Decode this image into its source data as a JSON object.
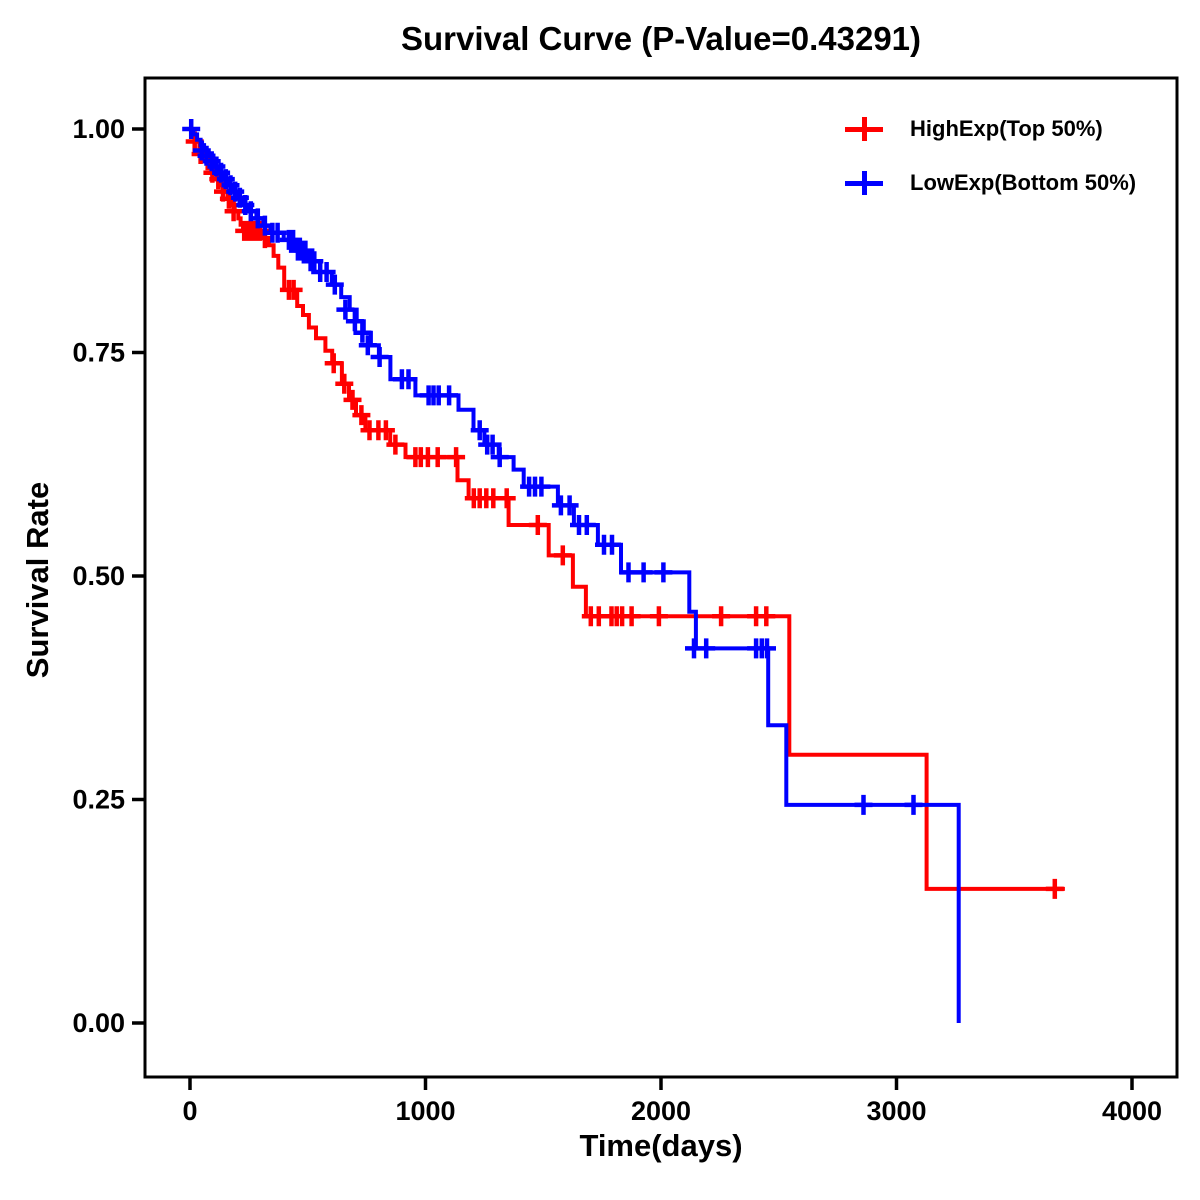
{
  "chart_data": {
    "type": "line",
    "subtype": "kaplan-meier-step-survival",
    "title": "Survival Curve (P-Value=0.43291)",
    "xlabel": "Time(days)",
    "ylabel": "Survival Rate",
    "p_value": "0.43291",
    "grid": false,
    "legend_position": "top-right-inside",
    "xlim": [
      -190,
      4190
    ],
    "ylim": [
      -0.06,
      1.06
    ],
    "x_ticks": [
      0,
      1000,
      2000,
      3000,
      4000
    ],
    "x_tick_labels": [
      "0",
      "1000",
      "2000",
      "3000",
      "4000"
    ],
    "y_ticks": [
      0.0,
      0.25,
      0.5,
      0.75,
      1.0
    ],
    "y_tick_labels": [
      "0.00",
      "0.25",
      "0.50",
      "0.75",
      "1.00"
    ],
    "axis_color": "#000000",
    "background_color": "#ffffff",
    "series": [
      {
        "id": "highexp",
        "name": "HighExp(Top 50%)",
        "color": "#FF0000",
        "end_day": 3715,
        "steps": [
          [
            0,
            1.0
          ],
          [
            12,
            0.993
          ],
          [
            25,
            0.986
          ],
          [
            40,
            0.979
          ],
          [
            55,
            0.972
          ],
          [
            70,
            0.965
          ],
          [
            85,
            0.958
          ],
          [
            100,
            0.951
          ],
          [
            115,
            0.944
          ],
          [
            130,
            0.937
          ],
          [
            145,
            0.93
          ],
          [
            160,
            0.922
          ],
          [
            175,
            0.915
          ],
          [
            190,
            0.908
          ],
          [
            205,
            0.9
          ],
          [
            215,
            0.893
          ],
          [
            225,
            0.886
          ],
          [
            310,
            0.878
          ],
          [
            335,
            0.87
          ],
          [
            355,
            0.858
          ],
          [
            375,
            0.845
          ],
          [
            400,
            0.82
          ],
          [
            455,
            0.802
          ],
          [
            480,
            0.792
          ],
          [
            505,
            0.778
          ],
          [
            535,
            0.766
          ],
          [
            575,
            0.752
          ],
          [
            604,
            0.738
          ],
          [
            645,
            0.715
          ],
          [
            675,
            0.697
          ],
          [
            705,
            0.68
          ],
          [
            745,
            0.663
          ],
          [
            850,
            0.647
          ],
          [
            915,
            0.633
          ],
          [
            1136,
            0.607
          ],
          [
            1183,
            0.587
          ],
          [
            1353,
            0.557
          ],
          [
            1523,
            0.523
          ],
          [
            1626,
            0.488
          ],
          [
            1681,
            0.455
          ],
          [
            2545,
            0.3
          ],
          [
            3128,
            0.15
          ]
        ],
        "censors": [
          [
            20,
            0.986
          ],
          [
            45,
            0.972
          ],
          [
            75,
            0.965
          ],
          [
            95,
            0.951
          ],
          [
            120,
            0.944
          ],
          [
            140,
            0.93
          ],
          [
            165,
            0.922
          ],
          [
            185,
            0.908
          ],
          [
            230,
            0.886
          ],
          [
            248,
            0.886
          ],
          [
            263,
            0.886
          ],
          [
            278,
            0.886
          ],
          [
            296,
            0.886
          ],
          [
            318,
            0.878
          ],
          [
            420,
            0.82
          ],
          [
            440,
            0.82
          ],
          [
            610,
            0.738
          ],
          [
            655,
            0.715
          ],
          [
            690,
            0.697
          ],
          [
            728,
            0.68
          ],
          [
            762,
            0.663
          ],
          [
            800,
            0.663
          ],
          [
            832,
            0.663
          ],
          [
            872,
            0.647
          ],
          [
            957,
            0.633
          ],
          [
            980,
            0.633
          ],
          [
            1010,
            0.633
          ],
          [
            1052,
            0.633
          ],
          [
            1130,
            0.633
          ],
          [
            1205,
            0.587
          ],
          [
            1230,
            0.587
          ],
          [
            1258,
            0.587
          ],
          [
            1288,
            0.587
          ],
          [
            1345,
            0.587
          ],
          [
            1477,
            0.557
          ],
          [
            1583,
            0.523
          ],
          [
            1702,
            0.455
          ],
          [
            1736,
            0.455
          ],
          [
            1790,
            0.455
          ],
          [
            1812,
            0.455
          ],
          [
            1835,
            0.455
          ],
          [
            1875,
            0.455
          ],
          [
            1991,
            0.455
          ],
          [
            2255,
            0.455
          ],
          [
            2404,
            0.455
          ],
          [
            2447,
            0.455
          ],
          [
            3672,
            0.15
          ]
        ]
      },
      {
        "id": "lowexp",
        "name": "LowExp(Bottom 50%)",
        "color": "#0000FF",
        "end_day": 3264,
        "steps": [
          [
            0,
            1.0
          ],
          [
            15,
            0.994
          ],
          [
            30,
            0.988
          ],
          [
            45,
            0.982
          ],
          [
            60,
            0.976
          ],
          [
            75,
            0.97
          ],
          [
            90,
            0.964
          ],
          [
            105,
            0.958
          ],
          [
            125,
            0.951
          ],
          [
            145,
            0.944
          ],
          [
            165,
            0.937
          ],
          [
            185,
            0.93
          ],
          [
            205,
            0.923
          ],
          [
            228,
            0.915
          ],
          [
            252,
            0.908
          ],
          [
            282,
            0.9
          ],
          [
            312,
            0.892
          ],
          [
            342,
            0.884
          ],
          [
            398,
            0.876
          ],
          [
            452,
            0.864
          ],
          [
            502,
            0.852
          ],
          [
            552,
            0.84
          ],
          [
            602,
            0.826
          ],
          [
            642,
            0.812
          ],
          [
            678,
            0.798
          ],
          [
            708,
            0.785
          ],
          [
            738,
            0.772
          ],
          [
            768,
            0.758
          ],
          [
            802,
            0.745
          ],
          [
            851,
            0.72
          ],
          [
            957,
            0.702
          ],
          [
            1140,
            0.686
          ],
          [
            1204,
            0.663
          ],
          [
            1250,
            0.647
          ],
          [
            1311,
            0.633
          ],
          [
            1374,
            0.619
          ],
          [
            1417,
            0.6
          ],
          [
            1562,
            0.579
          ],
          [
            1630,
            0.557
          ],
          [
            1732,
            0.535
          ],
          [
            1830,
            0.504
          ],
          [
            2120,
            0.46
          ],
          [
            2148,
            0.419
          ],
          [
            2455,
            0.333
          ],
          [
            2532,
            0.244
          ],
          [
            3264,
            0.0
          ]
        ],
        "censors": [
          [
            5,
            1.0
          ],
          [
            50,
            0.976
          ],
          [
            70,
            0.97
          ],
          [
            92,
            0.964
          ],
          [
            112,
            0.958
          ],
          [
            132,
            0.951
          ],
          [
            152,
            0.944
          ],
          [
            172,
            0.937
          ],
          [
            192,
            0.93
          ],
          [
            212,
            0.923
          ],
          [
            235,
            0.915
          ],
          [
            258,
            0.908
          ],
          [
            288,
            0.9
          ],
          [
            318,
            0.892
          ],
          [
            350,
            0.884
          ],
          [
            372,
            0.884
          ],
          [
            420,
            0.876
          ],
          [
            438,
            0.876
          ],
          [
            458,
            0.864
          ],
          [
            474,
            0.864
          ],
          [
            490,
            0.864
          ],
          [
            512,
            0.852
          ],
          [
            528,
            0.852
          ],
          [
            553,
            0.84
          ],
          [
            580,
            0.84
          ],
          [
            615,
            0.826
          ],
          [
            660,
            0.798
          ],
          [
            700,
            0.785
          ],
          [
            732,
            0.772
          ],
          [
            755,
            0.758
          ],
          [
            805,
            0.745
          ],
          [
            900,
            0.72
          ],
          [
            928,
            0.72
          ],
          [
            1013,
            0.702
          ],
          [
            1034,
            0.702
          ],
          [
            1056,
            0.702
          ],
          [
            1100,
            0.702
          ],
          [
            1230,
            0.663
          ],
          [
            1262,
            0.647
          ],
          [
            1285,
            0.647
          ],
          [
            1315,
            0.633
          ],
          [
            1440,
            0.6
          ],
          [
            1465,
            0.6
          ],
          [
            1492,
            0.6
          ],
          [
            1575,
            0.579
          ],
          [
            1612,
            0.579
          ],
          [
            1652,
            0.557
          ],
          [
            1685,
            0.557
          ],
          [
            1758,
            0.535
          ],
          [
            1792,
            0.535
          ],
          [
            1862,
            0.504
          ],
          [
            1926,
            0.504
          ],
          [
            2010,
            0.504
          ],
          [
            2140,
            0.419
          ],
          [
            2192,
            0.419
          ],
          [
            2404,
            0.419
          ],
          [
            2428,
            0.419
          ],
          [
            2450,
            0.419
          ],
          [
            2860,
            0.244
          ],
          [
            3072,
            0.244
          ]
        ]
      }
    ]
  }
}
